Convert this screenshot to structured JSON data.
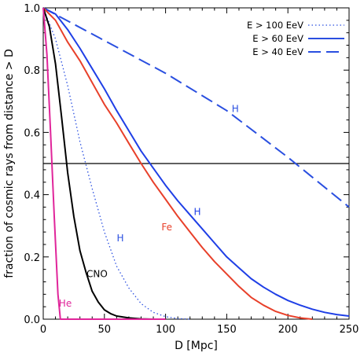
{
  "chart_data": {
    "type": "line",
    "xlabel": "D [Mpc]",
    "ylabel": "fraction of cosmic rays from distance > D",
    "xlim": [
      0,
      250
    ],
    "ylim": [
      0,
      1.0
    ],
    "xticks": [
      "0",
      "50",
      "100",
      "150",
      "200",
      "250"
    ],
    "yticks": [
      "0.0",
      "0.2",
      "0.4",
      "0.6",
      "0.8",
      "1.0"
    ],
    "grid": false,
    "legend_position": "top-right",
    "legend": [
      {
        "label": "E > 100 EeV",
        "style": "dotted"
      },
      {
        "label": "E > 60 EeV",
        "style": "solid"
      },
      {
        "label": "E > 40 EeV",
        "style": "dashed"
      }
    ],
    "reference_line": {
      "y": 0.5,
      "color": "#000000"
    },
    "series": [
      {
        "label": "H",
        "energy": "E > 40 EeV",
        "style": "dashed",
        "color": "#2a4fe0",
        "x": [
          0,
          50,
          100,
          150,
          200,
          250
        ],
        "y": [
          1.0,
          0.895,
          0.79,
          0.67,
          0.52,
          0.36
        ]
      },
      {
        "label": "H",
        "energy": "E > 60 EeV",
        "style": "solid",
        "color": "#1f3fe6",
        "x": [
          0,
          10,
          20,
          30,
          40,
          50,
          60,
          70,
          80,
          90,
          100,
          110,
          120,
          130,
          140,
          150,
          160,
          170,
          180,
          190,
          200,
          210,
          220,
          230,
          240,
          250
        ],
        "y": [
          1.0,
          0.98,
          0.93,
          0.87,
          0.805,
          0.74,
          0.67,
          0.605,
          0.54,
          0.485,
          0.43,
          0.38,
          0.335,
          0.29,
          0.245,
          0.2,
          0.165,
          0.13,
          0.103,
          0.08,
          0.06,
          0.045,
          0.032,
          0.022,
          0.015,
          0.01
        ]
      },
      {
        "label": "Fe",
        "energy": "E > 60 EeV",
        "style": "solid",
        "color": "#e8402a",
        "x": [
          0,
          10,
          20,
          30,
          40,
          50,
          60,
          70,
          80,
          90,
          100,
          110,
          120,
          130,
          140,
          150,
          160,
          170,
          180,
          190,
          200,
          210,
          220
        ],
        "y": [
          1.0,
          0.96,
          0.89,
          0.83,
          0.76,
          0.69,
          0.63,
          0.565,
          0.5,
          0.44,
          0.385,
          0.33,
          0.28,
          0.23,
          0.185,
          0.145,
          0.105,
          0.07,
          0.045,
          0.025,
          0.012,
          0.004,
          0.0
        ]
      },
      {
        "label": "H",
        "energy": "E > 100 EeV",
        "style": "dotted",
        "color": "#2a4fe0",
        "x": [
          0,
          10,
          20,
          30,
          40,
          50,
          60,
          70,
          80,
          90,
          100,
          110,
          120
        ],
        "y": [
          1.0,
          0.9,
          0.75,
          0.57,
          0.42,
          0.28,
          0.17,
          0.1,
          0.05,
          0.022,
          0.008,
          0.002,
          0.0
        ]
      },
      {
        "label": "CNO",
        "energy": "E > 60 EeV",
        "style": "solid",
        "color": "#000000",
        "x": [
          0,
          5,
          10,
          15,
          20,
          25,
          30,
          35,
          40,
          45,
          50,
          55,
          60,
          70,
          80,
          90,
          100
        ],
        "y": [
          1.0,
          0.94,
          0.82,
          0.65,
          0.47,
          0.33,
          0.22,
          0.15,
          0.09,
          0.055,
          0.03,
          0.018,
          0.01,
          0.004,
          0.001,
          0.0,
          0.0
        ]
      },
      {
        "label": "He",
        "energy": "E > 60 EeV",
        "style": "solid",
        "color": "#e0259a",
        "x": [
          0,
          3,
          6,
          9,
          12,
          14,
          100
        ],
        "y": [
          1.0,
          0.85,
          0.6,
          0.33,
          0.08,
          0.0,
          0.0
        ]
      }
    ],
    "annotations": [
      {
        "text": "H",
        "x": 157,
        "y": 0.665,
        "color": "#2a4fe0"
      },
      {
        "text": "H",
        "x": 126,
        "y": 0.335,
        "color": "#1f3fe6"
      },
      {
        "text": "Fe",
        "x": 101,
        "y": 0.285,
        "color": "#e8402a"
      },
      {
        "text": "H",
        "x": 63,
        "y": 0.25,
        "color": "#2a4fe0"
      },
      {
        "text": "CNO",
        "x": 44,
        "y": 0.135,
        "color": "#000000"
      },
      {
        "text": "He",
        "x": 18,
        "y": 0.04,
        "color": "#e0259a"
      }
    ]
  }
}
